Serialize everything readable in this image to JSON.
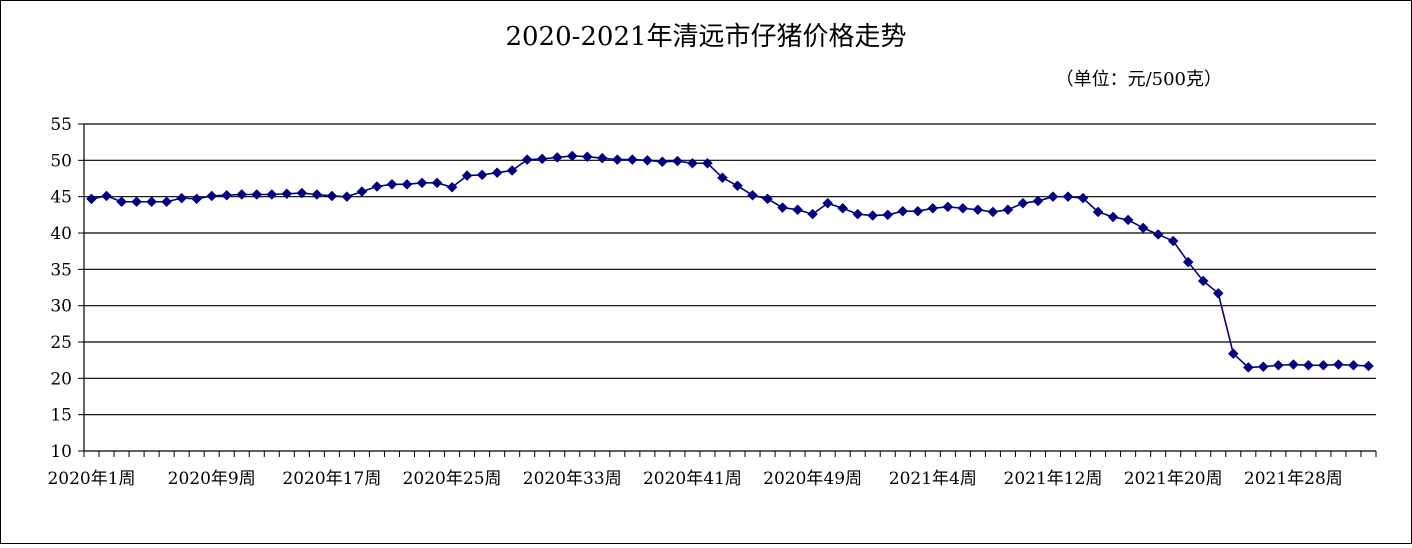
{
  "chart_data": {
    "type": "line",
    "title": "2020-2021年清远市仔猪价格走势",
    "unit_note": "（单位：元/500克）",
    "xlabel": "",
    "ylabel": "",
    "ylim": [
      10,
      55
    ],
    "y_ticks": [
      10,
      15,
      20,
      25,
      30,
      35,
      40,
      45,
      50,
      55
    ],
    "grid": true,
    "legend": "none",
    "colors": {
      "line": "#000080",
      "marker": "#000080",
      "grid": "#000000",
      "frame": "#000000"
    },
    "x_tick_labels": [
      {
        "index": 0,
        "label": "2020年1周"
      },
      {
        "index": 8,
        "label": "2020年9周"
      },
      {
        "index": 16,
        "label": "2020年17周"
      },
      {
        "index": 24,
        "label": "2020年25周"
      },
      {
        "index": 32,
        "label": "2020年33周"
      },
      {
        "index": 40,
        "label": "2020年41周"
      },
      {
        "index": 48,
        "label": "2020年49周"
      },
      {
        "index": 56,
        "label": "2021年4周"
      },
      {
        "index": 64,
        "label": "2021年12周"
      },
      {
        "index": 72,
        "label": "2021年20周"
      },
      {
        "index": 80,
        "label": "2021年28周"
      }
    ],
    "series": [
      {
        "values": [
          44.7,
          45.1,
          44.3,
          44.3,
          44.3,
          44.3,
          44.8,
          44.7,
          45.1,
          45.2,
          45.3,
          45.3,
          45.3,
          45.4,
          45.5,
          45.3,
          45.1,
          45.0,
          45.7,
          46.4,
          46.7,
          46.7,
          46.9,
          46.9,
          46.3,
          47.9,
          48.0,
          48.3,
          48.6,
          50.1,
          50.2,
          50.4,
          50.6,
          50.5,
          50.3,
          50.1,
          50.1,
          50.0,
          49.8,
          49.9,
          49.6,
          49.6,
          47.6,
          46.5,
          45.2,
          44.7,
          43.5,
          43.2,
          42.6,
          44.1,
          43.4,
          42.6,
          42.4,
          42.5,
          43.0,
          43.0,
          43.4,
          43.6,
          43.4,
          43.2,
          42.9,
          43.2,
          44.1,
          44.4,
          45.0,
          45.0,
          44.8,
          42.9,
          42.2,
          41.8,
          40.7,
          39.8,
          38.9,
          36.0,
          33.4,
          31.7,
          23.4,
          21.5,
          21.6,
          21.8,
          21.9,
          21.8,
          21.8,
          21.9,
          21.8,
          21.7
        ]
      }
    ]
  }
}
